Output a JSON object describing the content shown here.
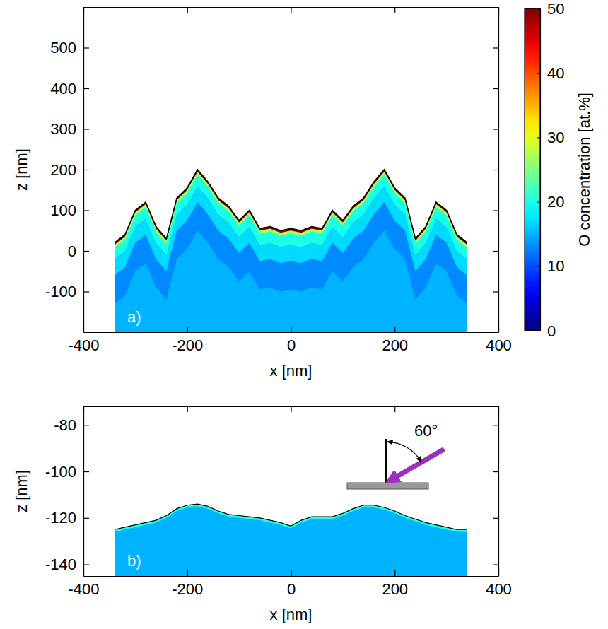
{
  "chart_data": [
    {
      "type": "contour",
      "panel_label": "a)",
      "xlabel": "x [nm]",
      "ylabel": "z [nm]",
      "xlim": [
        -400,
        400
      ],
      "xticks": [
        -400,
        -200,
        0,
        200,
        400
      ],
      "ylim": [
        -200,
        600
      ],
      "yticks": [
        -100,
        0,
        100,
        200,
        300,
        400,
        500
      ],
      "x": [
        -340,
        -320,
        -300,
        -280,
        -260,
        -240,
        -220,
        -200,
        -180,
        -160,
        -140,
        -120,
        -100,
        -80,
        -60,
        -40,
        -20,
        0,
        20,
        40,
        60,
        80,
        100,
        120,
        140,
        160,
        180,
        200,
        220,
        240,
        260,
        280,
        300,
        320,
        340
      ],
      "layers": [
        {
          "value": 50,
          "z": [
            20,
            40,
            100,
            120,
            60,
            30,
            130,
            155,
            200,
            170,
            130,
            110,
            75,
            100,
            55,
            60,
            50,
            55,
            50,
            60,
            55,
            100,
            75,
            110,
            130,
            170,
            200,
            155,
            130,
            30,
            60,
            120,
            100,
            40,
            20
          ]
        },
        {
          "value": 27,
          "z": [
            15,
            35,
            95,
            115,
            55,
            25,
            125,
            150,
            195,
            165,
            125,
            105,
            70,
            95,
            50,
            55,
            45,
            50,
            45,
            55,
            50,
            95,
            70,
            105,
            125,
            165,
            195,
            150,
            125,
            25,
            55,
            115,
            95,
            35,
            15
          ]
        },
        {
          "value": 20,
          "z": [
            8,
            28,
            88,
            108,
            48,
            18,
            118,
            143,
            188,
            158,
            118,
            98,
            63,
            88,
            43,
            48,
            38,
            43,
            38,
            48,
            43,
            88,
            63,
            98,
            118,
            158,
            188,
            143,
            118,
            18,
            48,
            108,
            88,
            28,
            8
          ]
        },
        {
          "value": 17,
          "z": [
            -20,
            0,
            60,
            80,
            20,
            -10,
            90,
            115,
            160,
            130,
            90,
            70,
            35,
            60,
            15,
            20,
            10,
            15,
            10,
            20,
            15,
            60,
            35,
            70,
            90,
            130,
            160,
            115,
            90,
            -10,
            20,
            80,
            60,
            0,
            -20
          ]
        },
        {
          "value": 13,
          "z": [
            -60,
            -40,
            20,
            40,
            -20,
            -50,
            50,
            75,
            120,
            90,
            50,
            30,
            -5,
            20,
            -25,
            -20,
            -30,
            -25,
            -30,
            -20,
            -25,
            20,
            -5,
            30,
            50,
            90,
            120,
            75,
            50,
            -50,
            -20,
            40,
            20,
            -40,
            -60
          ]
        },
        {
          "value": 15,
          "z": [
            -130,
            -110,
            -50,
            -30,
            -90,
            -120,
            -20,
            5,
            50,
            20,
            -20,
            -40,
            -75,
            -50,
            -95,
            -90,
            -100,
            -95,
            -100,
            -90,
            -95,
            -50,
            -75,
            -40,
            -20,
            20,
            50,
            5,
            -20,
            -120,
            -90,
            -30,
            -50,
            -110,
            -130
          ]
        }
      ],
      "colorbar": {
        "label": "O concentration [at.%]",
        "range": [
          0,
          50
        ],
        "ticks": [
          0,
          10,
          20,
          30,
          40,
          50
        ]
      }
    },
    {
      "type": "contour",
      "panel_label": "b)",
      "xlabel": "x [nm]",
      "ylabel": "z [nm]",
      "annotation": "60°",
      "xlim": [
        -400,
        400
      ],
      "xticks": [
        -400,
        -200,
        0,
        200,
        400
      ],
      "ylim": [
        -145,
        -72
      ],
      "yticks": [
        -140,
        -120,
        -100,
        -80
      ],
      "x": [
        -340,
        -320,
        -300,
        -280,
        -260,
        -240,
        -220,
        -200,
        -180,
        -160,
        -140,
        -120,
        -100,
        -80,
        -60,
        -40,
        -20,
        0,
        20,
        40,
        60,
        80,
        100,
        120,
        140,
        160,
        180,
        200,
        220,
        240,
        260,
        280,
        300,
        320,
        340
      ],
      "layers": [
        {
          "value": 20,
          "z": [
            -125,
            -124,
            -123,
            -122,
            -121,
            -119,
            -116,
            -114.5,
            -114,
            -115,
            -117,
            -118.5,
            -119,
            -119.5,
            -120,
            -121,
            -122,
            -123.5,
            -121,
            -119.5,
            -119.5,
            -119.5,
            -118,
            -116,
            -114.5,
            -114.5,
            -115.5,
            -117,
            -119,
            -120.5,
            -122,
            -123,
            -124,
            -125,
            -125
          ]
        },
        {
          "value": 15,
          "z": [
            -126,
            -125,
            -124,
            -123,
            -122,
            -120,
            -117,
            -115.5,
            -115,
            -116,
            -118,
            -119.5,
            -120,
            -120.5,
            -121,
            -122,
            -123,
            -124.5,
            -122,
            -120.5,
            -120.5,
            -120.5,
            -119,
            -117,
            -115.5,
            -115.5,
            -116.5,
            -118,
            -120,
            -121.5,
            -123,
            -124,
            -125,
            -126,
            -126
          ]
        }
      ]
    }
  ]
}
